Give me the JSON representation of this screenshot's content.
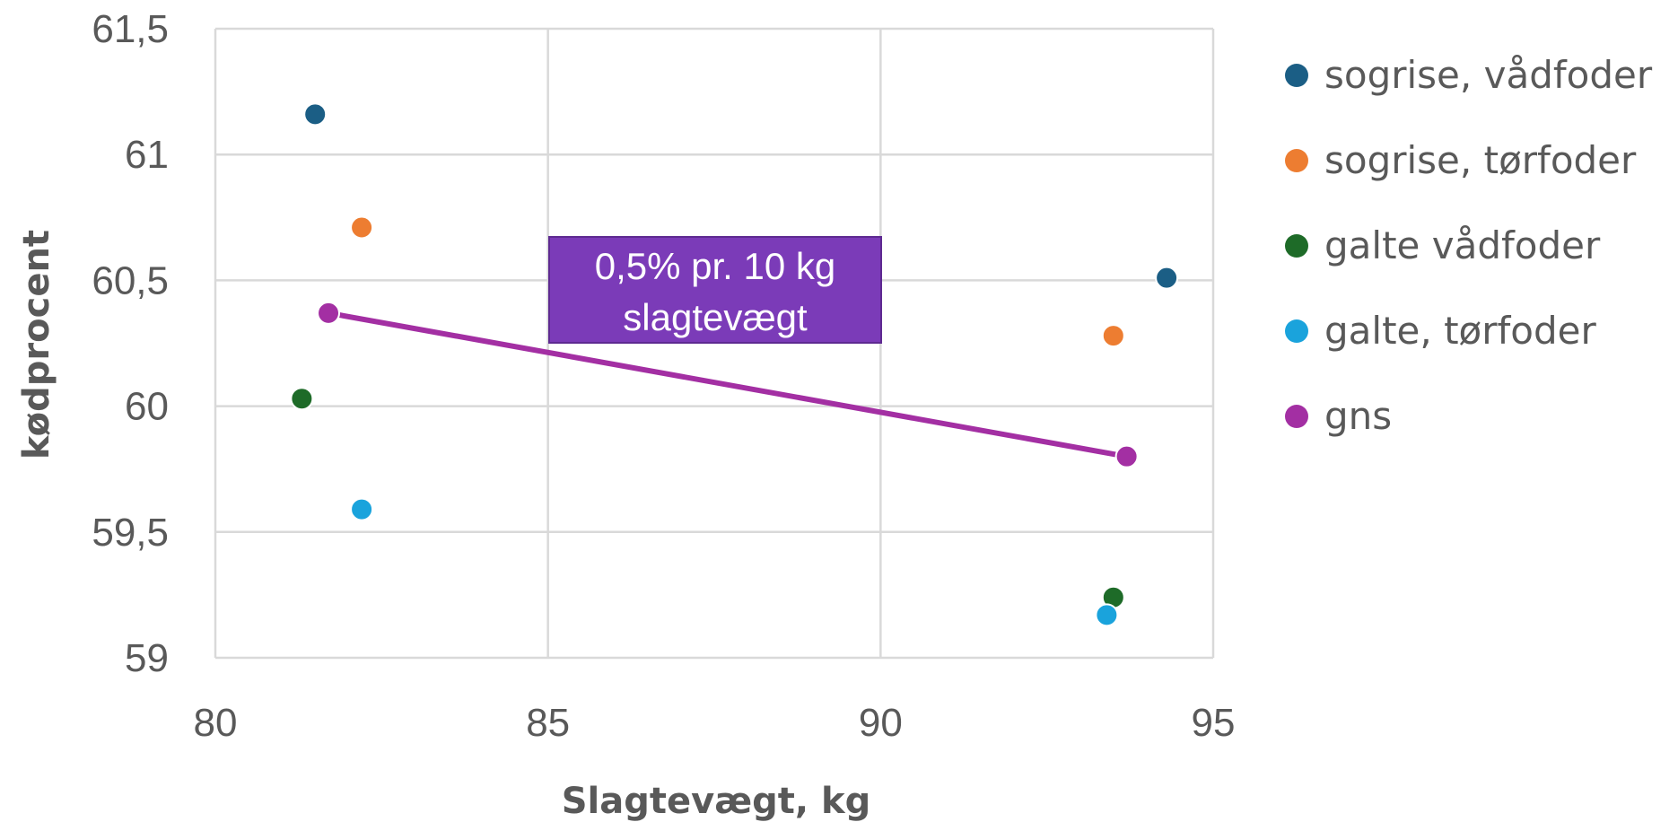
{
  "chart_data": {
    "type": "scatter",
    "xlabel": "Slagtevægt, kg",
    "ylabel": "kødprocent",
    "xlim": [
      80,
      95
    ],
    "ylim": [
      59,
      61.5
    ],
    "x_ticks": [
      "80",
      "85",
      "90",
      "95"
    ],
    "y_ticks": [
      "59",
      "59,5",
      "60",
      "60,5",
      "61",
      "61,5"
    ],
    "grid": true,
    "legend_position": "right",
    "series": [
      {
        "name": "sogrise, vådfoder",
        "color": "#1b5e85",
        "points": [
          [
            81.5,
            61.16
          ],
          [
            94.3,
            60.51
          ]
        ]
      },
      {
        "name": "sogrise, tørfoder",
        "color": "#ed7d31",
        "points": [
          [
            82.2,
            60.71
          ],
          [
            93.5,
            60.28
          ]
        ]
      },
      {
        "name": "galte vådfoder",
        "color": "#1e6b28",
        "points": [
          [
            81.3,
            60.03
          ],
          [
            93.5,
            59.24
          ]
        ]
      },
      {
        "name": "galte, tørfoder",
        "color": "#1aa3dc",
        "points": [
          [
            82.2,
            59.59
          ],
          [
            93.4,
            59.17
          ]
        ]
      },
      {
        "name": "gns",
        "color": "#a32fa3",
        "line": true,
        "points": [
          [
            81.7,
            60.37
          ],
          [
            93.7,
            59.8
          ]
        ]
      }
    ],
    "annotation": {
      "lines": [
        "0,5% pr. 10 kg",
        "slagtevægt"
      ],
      "color": "#7b3bb8"
    }
  }
}
